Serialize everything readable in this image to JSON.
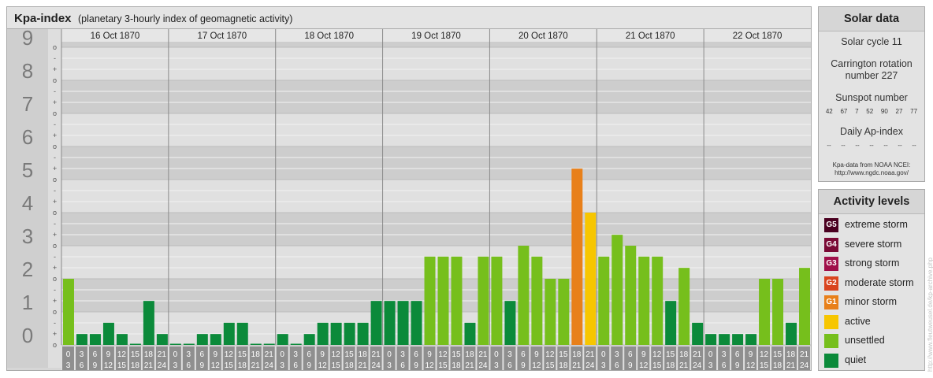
{
  "chart_data": {
    "type": "bar",
    "title": "Kpa-index",
    "subtitle": "(planetary 3-hourly index of geomagnetic activity)",
    "days": [
      "16 Oct 1870",
      "17 Oct 1870",
      "18 Oct 1870",
      "19 Oct 1870",
      "20 Oct 1870",
      "21 Oct 1870",
      "22 Oct 1870"
    ],
    "interval_start_labels": [
      "0",
      "3",
      "6",
      "9",
      "12",
      "15",
      "18",
      "21"
    ],
    "interval_end_labels": [
      "3",
      "6",
      "9",
      "12",
      "15",
      "18",
      "21",
      "24"
    ],
    "y_ticks": [
      "0",
      "1",
      "2",
      "3",
      "4",
      "5",
      "6",
      "7",
      "8",
      "9"
    ],
    "minor_ticks": [
      "o",
      "+",
      "-"
    ],
    "ylim": [
      0,
      9.33
    ],
    "values": [
      2.0,
      0.33,
      0.33,
      0.67,
      0.33,
      0.0,
      1.33,
      0.33,
      0.0,
      0.0,
      0.33,
      0.33,
      0.67,
      0.67,
      0.0,
      0.0,
      0.33,
      0.0,
      0.33,
      0.67,
      0.67,
      0.67,
      0.67,
      1.33,
      1.33,
      1.33,
      1.33,
      2.67,
      2.67,
      2.67,
      0.67,
      2.67,
      2.67,
      1.33,
      3.0,
      2.67,
      2.0,
      2.0,
      5.33,
      4.0,
      2.67,
      3.33,
      3.0,
      2.67,
      2.67,
      1.33,
      2.33,
      0.67,
      0.33,
      0.33,
      0.33,
      0.33,
      2.0,
      2.0,
      0.67,
      2.33
    ],
    "level_colors": {
      "quiet": "#0b8a3a",
      "unsettled": "#76bf1c",
      "active": "#f7c600",
      "minor storm": "#e8801a",
      "moderate storm": "#d9451f",
      "strong storm": "#a0104a",
      "severe storm": "#7a0a35",
      "extreme storm": "#4a0020"
    },
    "grid": true,
    "legend_position": "right"
  },
  "solar": {
    "title": "Solar data",
    "cycle": "Solar cycle 11",
    "carrington_line1": "Carrington rotation",
    "carrington_line2": "number 227",
    "sunspot_label": "Sunspot number",
    "sunspot_values": [
      "42",
      "67",
      "7",
      "52",
      "90",
      "27",
      "77"
    ],
    "ap_label": "Daily Ap-index",
    "ap_values": [
      "--",
      "--",
      "--",
      "--",
      "--",
      "--",
      "--"
    ],
    "note_line1": "Kpa-data from NOAA NCEI:",
    "note_line2": "http://www.ngdc.noaa.gov/"
  },
  "activity": {
    "title": "Activity levels",
    "levels": [
      {
        "badge": "G5",
        "label": "extreme storm",
        "color": "#4a0020"
      },
      {
        "badge": "G4",
        "label": "severe storm",
        "color": "#7a0a35"
      },
      {
        "badge": "G3",
        "label": "strong storm",
        "color": "#a0104a"
      },
      {
        "badge": "G2",
        "label": "moderate storm",
        "color": "#d9451f"
      },
      {
        "badge": "G1",
        "label": "minor storm",
        "color": "#e8801a"
      },
      {
        "badge": "",
        "label": "active",
        "color": "#f7c600"
      },
      {
        "badge": "",
        "label": "unsettled",
        "color": "#76bf1c"
      },
      {
        "badge": "",
        "label": "quiet",
        "color": "#0b8a3a"
      }
    ]
  },
  "credit": "http://www.fleutweusel.de/kp-archive.php"
}
